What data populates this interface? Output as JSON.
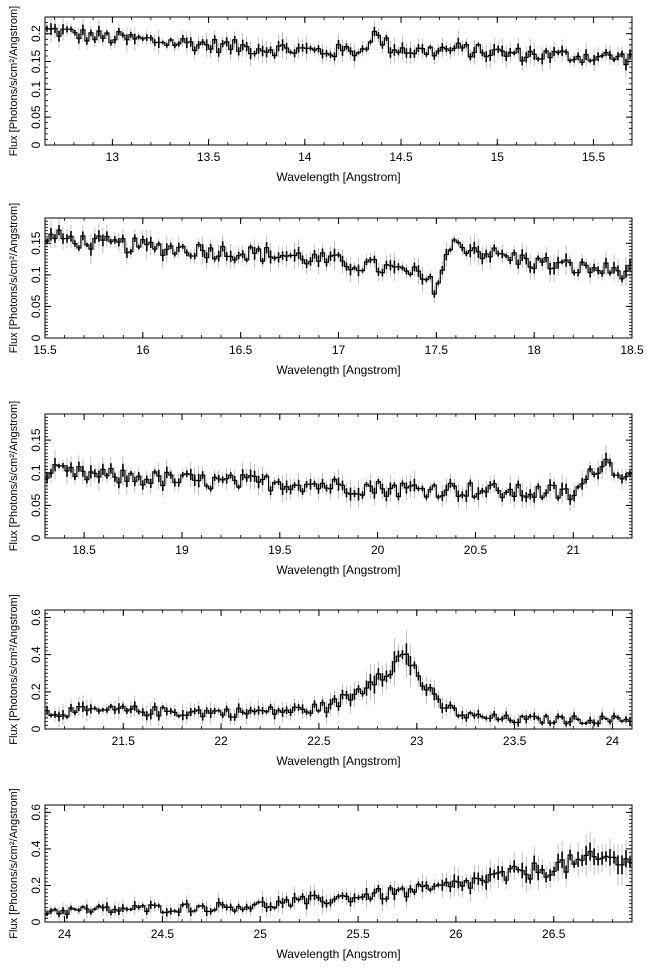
{
  "figure": {
    "ylabel": "Flux [Photons/s/cm²/Angstrom]",
    "xlabel": "Wavelength [Angstrom]"
  },
  "colors": {
    "data": "#000000",
    "error": "#9a9a9a",
    "frame": "#000000"
  },
  "chart_data": [
    {
      "type": "line",
      "xlabel": "Wavelength [Angstrom]",
      "ylabel": "Flux [Photons/s/cm²/Angstrom]",
      "xlim": [
        12.65,
        15.7
      ],
      "ylim": [
        0,
        0.23
      ],
      "x_ticks": [
        "13",
        "13.5",
        "14",
        "14.5",
        "15",
        "15.5"
      ],
      "y_ticks": [
        "0",
        "0.05",
        "0.1",
        "0.15",
        "0.2"
      ],
      "series": [
        {
          "x": [
            12.7,
            12.9,
            13.1,
            13.3,
            13.5,
            13.7,
            13.9,
            14.1,
            14.3,
            14.35,
            14.45,
            14.6,
            14.8,
            15.0,
            15.2,
            15.4,
            15.6,
            15.7
          ],
          "y": [
            0.205,
            0.195,
            0.19,
            0.185,
            0.18,
            0.175,
            0.172,
            0.168,
            0.17,
            0.2,
            0.175,
            0.168,
            0.172,
            0.165,
            0.162,
            0.16,
            0.158,
            0.155
          ]
        }
      ]
    },
    {
      "type": "line",
      "xlabel": "Wavelength [Angstrom]",
      "ylabel": "Flux [Photons/s/cm²/Angstrom]",
      "xlim": [
        15.5,
        18.5
      ],
      "ylim": [
        0,
        0.19
      ],
      "x_ticks": [
        "15.5",
        "16",
        "16.5",
        "17",
        "17.5",
        "18",
        "18.5"
      ],
      "y_ticks": [
        "0",
        "0.05",
        "0.1",
        "0.15"
      ],
      "series": [
        {
          "x": [
            15.55,
            15.75,
            16.0,
            16.25,
            16.5,
            16.75,
            17.0,
            17.25,
            17.4,
            17.5,
            17.55,
            17.6,
            17.75,
            18.0,
            18.25,
            18.5
          ],
          "y": [
            0.16,
            0.15,
            0.145,
            0.14,
            0.135,
            0.13,
            0.12,
            0.11,
            0.1,
            0.08,
            0.13,
            0.15,
            0.135,
            0.12,
            0.11,
            0.105
          ]
        }
      ]
    },
    {
      "type": "line",
      "xlabel": "Wavelength [Angstrom]",
      "ylabel": "Flux [Photons/s/cm²/Angstrom]",
      "xlim": [
        18.3,
        21.3
      ],
      "ylim": [
        0,
        0.19
      ],
      "x_ticks": [
        "18.5",
        "19",
        "19.5",
        "20",
        "20.5",
        "21"
      ],
      "y_ticks": [
        "0",
        "0.05",
        "0.1",
        "0.15"
      ],
      "series": [
        {
          "x": [
            18.35,
            18.6,
            18.9,
            19.2,
            19.5,
            19.8,
            20.1,
            20.4,
            20.7,
            20.9,
            21.0,
            21.1,
            21.15,
            21.3
          ],
          "y": [
            0.1,
            0.095,
            0.09,
            0.085,
            0.085,
            0.08,
            0.075,
            0.075,
            0.07,
            0.07,
            0.065,
            0.1,
            0.12,
            0.09
          ]
        }
      ]
    },
    {
      "type": "line",
      "xlabel": "Wavelength [Angstrom]",
      "ylabel": "Flux [Photons/s/cm²/Angstrom]",
      "xlim": [
        21.1,
        24.1
      ],
      "ylim": [
        0,
        0.64
      ],
      "x_ticks": [
        "21.5",
        "22",
        "22.5",
        "23",
        "23.5",
        "24"
      ],
      "y_ticks": [
        "0",
        "0.2",
        "0.4",
        "0.6"
      ],
      "series": [
        {
          "x": [
            21.15,
            21.5,
            21.8,
            22.1,
            22.4,
            22.55,
            22.7,
            22.8,
            22.9,
            22.95,
            23.0,
            23.1,
            23.25,
            23.5,
            23.8,
            24.1
          ],
          "y": [
            0.09,
            0.1,
            0.09,
            0.09,
            0.1,
            0.12,
            0.2,
            0.3,
            0.36,
            0.4,
            0.3,
            0.14,
            0.07,
            0.05,
            0.05,
            0.05
          ]
        }
      ]
    },
    {
      "type": "line",
      "xlabel": "Wavelength [Angstrom]",
      "ylabel": "Flux [Photons/s/cm²/Angstrom]",
      "xlim": [
        23.9,
        26.9
      ],
      "ylim": [
        0,
        0.64
      ],
      "x_ticks": [
        "24",
        "24.5",
        "25",
        "25.5",
        "26",
        "26.5"
      ],
      "y_ticks": [
        "0",
        "0.2",
        "0.4",
        "0.6"
      ],
      "series": [
        {
          "x": [
            23.95,
            24.3,
            24.7,
            25.0,
            25.3,
            25.6,
            25.9,
            26.2,
            26.4,
            26.6,
            26.8,
            26.9
          ],
          "y": [
            0.06,
            0.07,
            0.08,
            0.09,
            0.12,
            0.15,
            0.18,
            0.24,
            0.28,
            0.32,
            0.35,
            0.3
          ]
        }
      ]
    }
  ]
}
